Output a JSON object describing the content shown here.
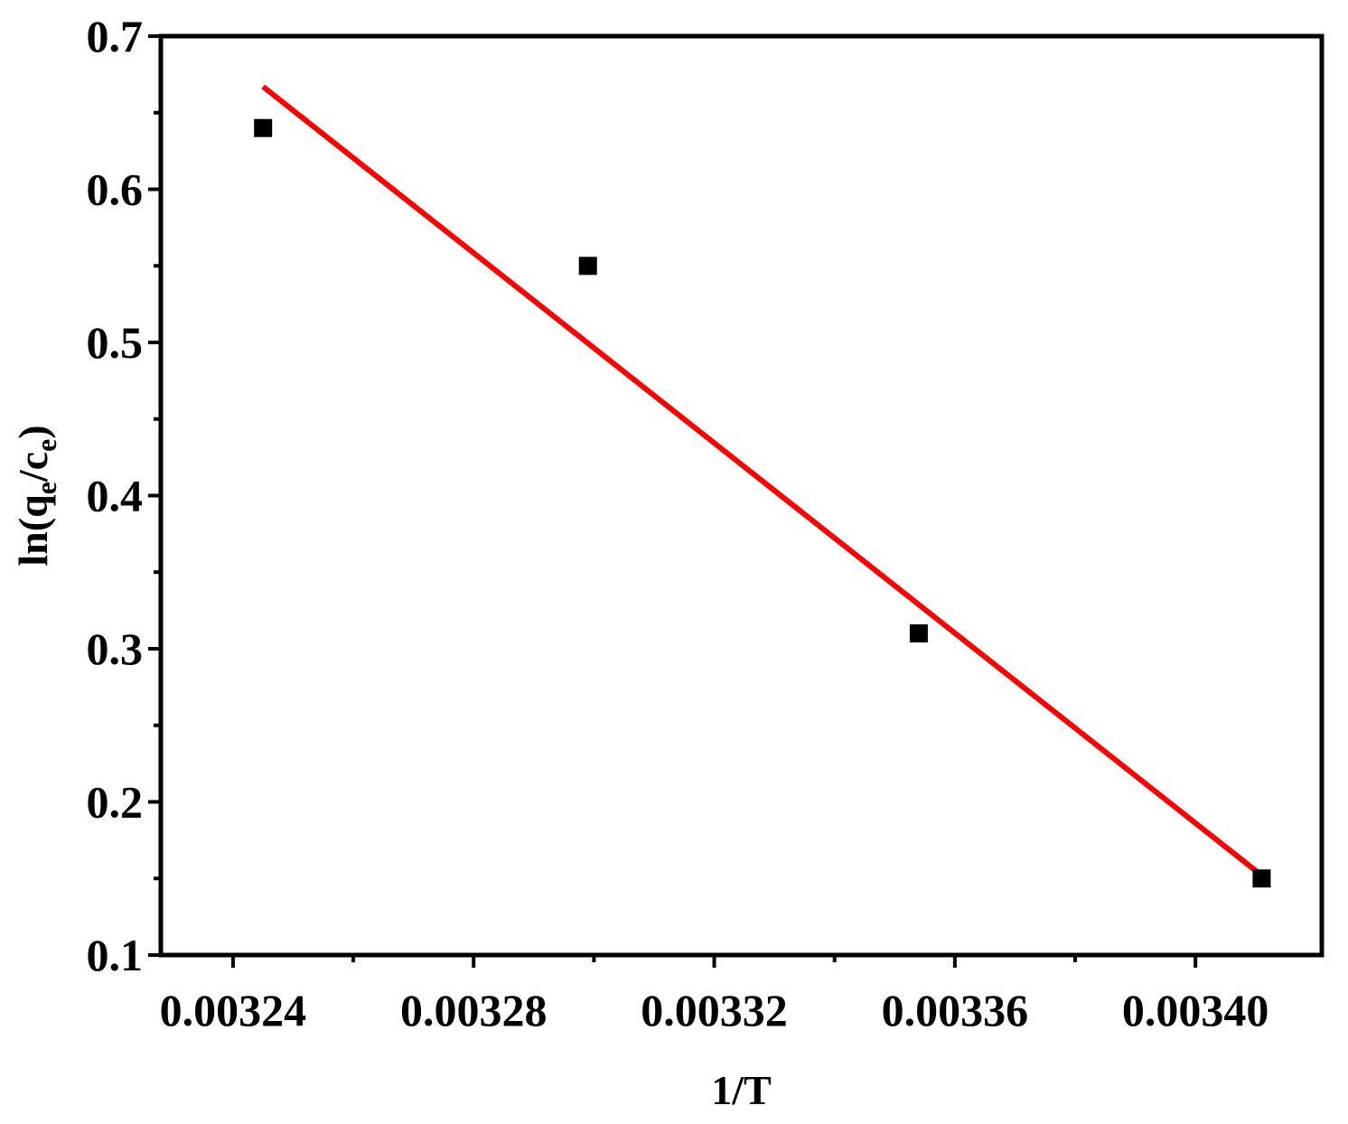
{
  "chart_data": {
    "type": "scatter",
    "xlabel": "1/T",
    "ylabel": {
      "prefix": "ln(q",
      "sub1": "e",
      "mid": "/c",
      "sub2": "e",
      "suffix": ")"
    },
    "xlim": [
      0.003228,
      0.003421
    ],
    "ylim": [
      0.1,
      0.7
    ],
    "x_ticks": [
      0.00324,
      0.00328,
      0.00332,
      0.00336,
      0.0034
    ],
    "x_tick_labels": [
      "0.00324",
      "0.00328",
      "0.00332",
      "0.00336",
      "0.00340"
    ],
    "x_minor_ticks": [
      0.00326,
      0.0033,
      0.00334,
      0.00338
    ],
    "y_ticks": [
      0.1,
      0.2,
      0.3,
      0.4,
      0.5,
      0.6,
      0.7
    ],
    "y_tick_labels": [
      "0.1",
      "0.2",
      "0.3",
      "0.4",
      "0.5",
      "0.6",
      "0.7"
    ],
    "y_minor_ticks": [
      0.15,
      0.25,
      0.35,
      0.45,
      0.55,
      0.65
    ],
    "grid": false,
    "series": [
      {
        "type": "scatter",
        "marker": "square",
        "color": "#000000",
        "x": [
          0.003245,
          0.003299,
          0.003354,
          0.003411
        ],
        "y": [
          0.64,
          0.55,
          0.31,
          0.15
        ]
      },
      {
        "type": "line",
        "color": "#ff0000",
        "x": [
          0.003245,
          0.003411
        ],
        "y": [
          0.667,
          0.152
        ]
      }
    ]
  }
}
